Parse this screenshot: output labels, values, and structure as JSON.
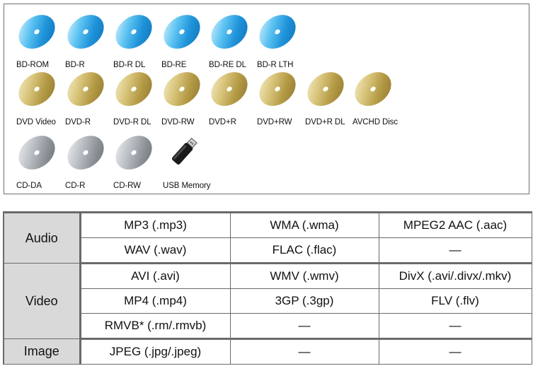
{
  "media": {
    "bluray": [
      "BD-ROM",
      "BD-R",
      "BD-R DL",
      "BD-RE",
      "BD-RE DL",
      "BD-R LTH"
    ],
    "dvd": [
      "DVD Video",
      "DVD-R",
      "DVD-R DL",
      "DVD-RW",
      "DVD+R",
      "DVD+RW",
      "DVD+R DL",
      "AVCHD Disc"
    ],
    "cd": [
      "CD-DA",
      "CD-R",
      "CD-RW"
    ],
    "usb": "USB Memory"
  },
  "colors": {
    "bluray_disc": "#2aa3e6",
    "dvd_disc": "#c9b25a",
    "cd_disc": "#9ea3a8",
    "usb_body": "#1a1a1a",
    "category_bg": "#d9d9d9"
  },
  "formats": {
    "audio": {
      "label": "Audio",
      "rows": [
        [
          "MP3 (.mp3)",
          "WMA (.wma)",
          "MPEG2 AAC (.aac)"
        ],
        [
          "WAV (.wav)",
          "FLAC (.flac)",
          "—"
        ]
      ]
    },
    "video": {
      "label": "Video",
      "rows": [
        [
          "AVI (.avi)",
          "WMV (.wmv)",
          "DivX (.avi/.divx/.mkv)"
        ],
        [
          "MP4 (.mp4)",
          "3GP (.3gp)",
          "FLV (.flv)"
        ],
        [
          "RMVB* (.rm/.rmvb)",
          "—",
          "—"
        ]
      ]
    },
    "image": {
      "label": "Image",
      "rows": [
        [
          "JPEG (.jpg/.jpeg)",
          "—",
          "—"
        ]
      ]
    }
  }
}
